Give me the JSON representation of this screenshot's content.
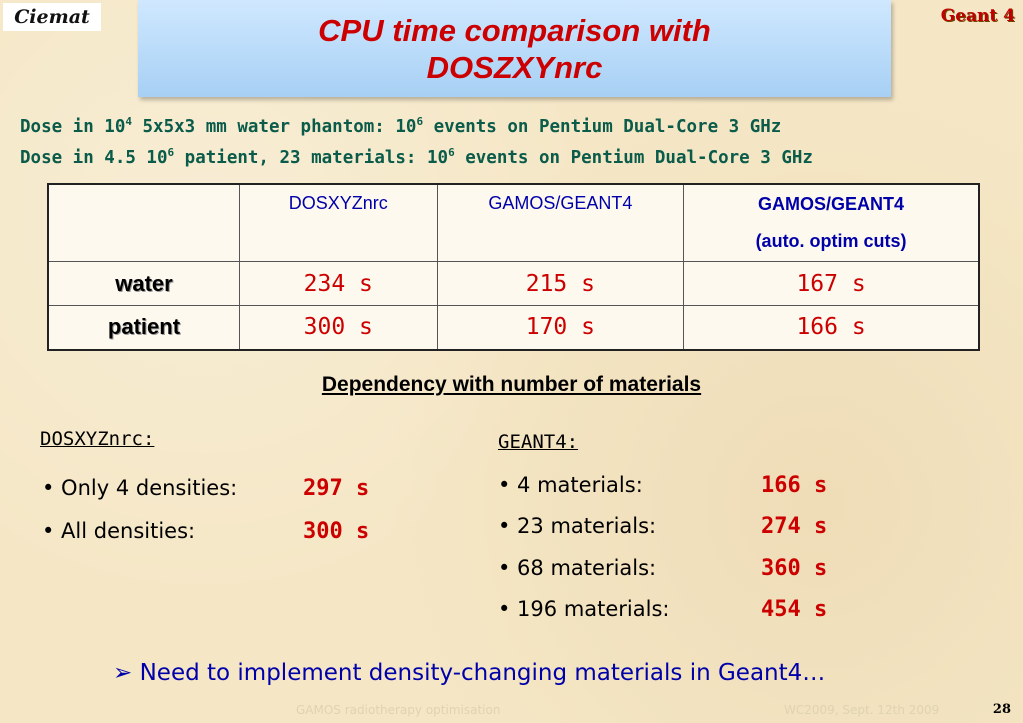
{
  "logo": "Ciemat",
  "brand": "Geant 4",
  "title": [
    "CPU time comparison with",
    "DOSZXYnrc"
  ],
  "subtitles": [
    {
      "a": "Dose in 10",
      "sup1": "4",
      "b": " 5x5x3 mm water phantom: 10",
      "sup2": "6",
      "c": " events on Pentium Dual-Core 3 GHz"
    },
    {
      "a": "Dose in 4.5 10",
      "sup1": "6",
      "b": " patient, 23 materials: 10",
      "sup2": "6",
      "c": " events on Pentium Dual-Core 3 GHz"
    }
  ],
  "table": {
    "headers": [
      "DOSXYZnrc",
      "GAMOS/GEANT4",
      "GAMOS/GEANT4",
      "(auto. optim cuts)"
    ],
    "rows": [
      {
        "label": "water",
        "values": [
          "234 s",
          "215 s",
          "167 s"
        ]
      },
      {
        "label": "patient",
        "values": [
          "300 s",
          "170 s",
          "166 s"
        ]
      }
    ]
  },
  "dependency_title": "Dependency with number of materials",
  "left": {
    "heading": "DOSXYZnrc:",
    "items": [
      {
        "label": "• Only 4 densities:",
        "value": "297 s"
      },
      {
        "label": "• All densities:",
        "value": "300 s"
      }
    ]
  },
  "right": {
    "heading": "GEANT4:",
    "items": [
      {
        "label": "• 4 materials:",
        "value": "166 s"
      },
      {
        "label": "• 23 materials:",
        "value": "274 s"
      },
      {
        "label": "• 68 materials:",
        "value": "360 s"
      },
      {
        "label": "• 196 materials:",
        "value": "454 s"
      }
    ]
  },
  "conclusion_arrow": "➢",
  "conclusion": "Need to implement density-changing materials in Geant4…",
  "footer": {
    "left": "GAMOS radiotherapy optimisation",
    "right": "WC2009, Sept. 12th 2009",
    "page": "28"
  }
}
